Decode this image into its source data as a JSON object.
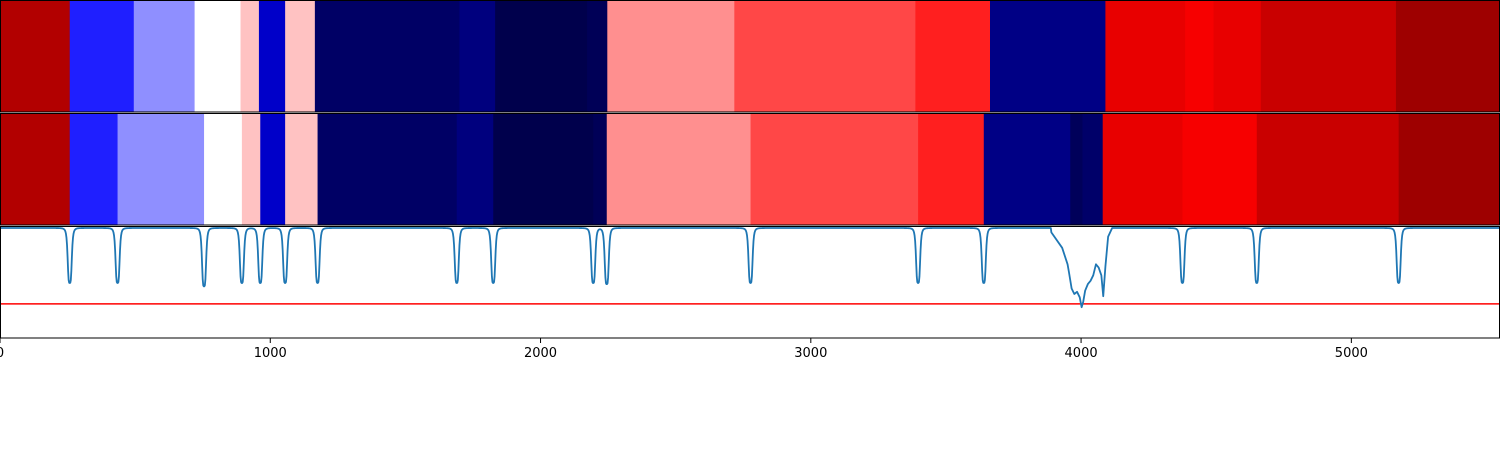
{
  "chart_data": {
    "type": "heatmap",
    "description_panels": [
      "segmentation-row-1",
      "segmentation-row-2",
      "boundary-signal"
    ],
    "xlim": [
      0,
      5550
    ],
    "x_ticks": [
      0,
      1000,
      2000,
      3000,
      4000,
      5000
    ],
    "x_tick_labels": [
      "0",
      "1000",
      "2000",
      "3000",
      "4000",
      "5000"
    ],
    "colormap": "seismic",
    "color_range": [
      -1,
      1
    ],
    "rows": [
      {
        "segments": [
          {
            "start": 0,
            "end": 258,
            "value": 0.8
          },
          {
            "start": 258,
            "end": 495,
            "value": -0.44
          },
          {
            "start": 495,
            "end": 720,
            "value": -0.22
          },
          {
            "start": 720,
            "end": 890,
            "value": 0.0
          },
          {
            "start": 890,
            "end": 958,
            "value": 0.12
          },
          {
            "start": 958,
            "end": 1055,
            "value": -0.65
          },
          {
            "start": 1055,
            "end": 1165,
            "value": 0.12
          },
          {
            "start": 1165,
            "end": 1700,
            "value": -0.93
          },
          {
            "start": 1700,
            "end": 1832,
            "value": -0.86
          },
          {
            "start": 1832,
            "end": 2172,
            "value": -1.0
          },
          {
            "start": 2172,
            "end": 2247,
            "value": -0.97
          },
          {
            "start": 2247,
            "end": 2717,
            "value": 0.22
          },
          {
            "start": 2717,
            "end": 3387,
            "value": 0.36
          },
          {
            "start": 3387,
            "end": 3663,
            "value": 0.44
          },
          {
            "start": 3663,
            "end": 4090,
            "value": -0.84
          },
          {
            "start": 4090,
            "end": 4385,
            "value": 0.59
          },
          {
            "start": 4385,
            "end": 4490,
            "value": 0.53
          },
          {
            "start": 4490,
            "end": 4665,
            "value": 0.59
          },
          {
            "start": 4665,
            "end": 5165,
            "value": 0.71
          },
          {
            "start": 5165,
            "end": 5550,
            "value": 0.88
          }
        ]
      },
      {
        "segments": [
          {
            "start": 0,
            "end": 258,
            "value": 0.8
          },
          {
            "start": 258,
            "end": 435,
            "value": -0.44
          },
          {
            "start": 435,
            "end": 755,
            "value": -0.22
          },
          {
            "start": 755,
            "end": 895,
            "value": 0.0
          },
          {
            "start": 895,
            "end": 963,
            "value": 0.12
          },
          {
            "start": 963,
            "end": 1055,
            "value": -0.65
          },
          {
            "start": 1055,
            "end": 1175,
            "value": 0.12
          },
          {
            "start": 1175,
            "end": 1690,
            "value": -0.93
          },
          {
            "start": 1690,
            "end": 1825,
            "value": -0.86
          },
          {
            "start": 1825,
            "end": 2195,
            "value": -1.0
          },
          {
            "start": 2195,
            "end": 2245,
            "value": -0.97
          },
          {
            "start": 2245,
            "end": 2777,
            "value": 0.22
          },
          {
            "start": 2777,
            "end": 3397,
            "value": 0.36
          },
          {
            "start": 3397,
            "end": 3640,
            "value": 0.44
          },
          {
            "start": 3640,
            "end": 3960,
            "value": -0.84
          },
          {
            "start": 3960,
            "end": 4005,
            "value": -0.96
          },
          {
            "start": 4005,
            "end": 4080,
            "value": -0.92
          },
          {
            "start": 4080,
            "end": 4375,
            "value": 0.59
          },
          {
            "start": 4375,
            "end": 4650,
            "value": 0.53
          },
          {
            "start": 4650,
            "end": 5175,
            "value": 0.71
          },
          {
            "start": 5175,
            "end": 5550,
            "value": 0.88
          }
        ]
      }
    ],
    "signal": {
      "color": "#1f77b4",
      "baseline": 0.0,
      "ylim": [
        -1.0,
        0.0
      ],
      "dip_width": 8,
      "dips": [
        {
          "x": 258,
          "depth": 0.5
        },
        {
          "x": 435,
          "depth": 0.5
        },
        {
          "x": 755,
          "depth": 0.53
        },
        {
          "x": 895,
          "depth": 0.5
        },
        {
          "x": 963,
          "depth": 0.5
        },
        {
          "x": 1055,
          "depth": 0.5
        },
        {
          "x": 1175,
          "depth": 0.5
        },
        {
          "x": 1690,
          "depth": 0.5
        },
        {
          "x": 1825,
          "depth": 0.5
        },
        {
          "x": 2195,
          "depth": 0.5
        },
        {
          "x": 2245,
          "depth": 0.51
        },
        {
          "x": 2777,
          "depth": 0.5
        },
        {
          "x": 3397,
          "depth": 0.5
        },
        {
          "x": 3640,
          "depth": 0.5
        },
        {
          "x": 4375,
          "depth": 0.5
        },
        {
          "x": 4650,
          "depth": 0.5
        },
        {
          "x": 5175,
          "depth": 0.5
        }
      ],
      "complex_segment": [
        [
          3890,
          -0.04
        ],
        [
          3930,
          -0.18
        ],
        [
          3950,
          -0.33
        ],
        [
          3955,
          -0.4
        ],
        [
          3965,
          -0.55
        ],
        [
          3975,
          -0.6
        ],
        [
          3985,
          -0.58
        ],
        [
          3995,
          -0.63
        ],
        [
          4002,
          -0.72
        ],
        [
          4008,
          -0.67
        ],
        [
          4015,
          -0.57
        ],
        [
          4025,
          -0.51
        ],
        [
          4035,
          -0.48
        ],
        [
          4045,
          -0.43
        ],
        [
          4055,
          -0.33
        ],
        [
          4065,
          -0.36
        ],
        [
          4075,
          -0.43
        ],
        [
          4082,
          -0.62
        ],
        [
          4090,
          -0.35
        ],
        [
          4100,
          -0.08
        ],
        [
          4115,
          0.0
        ]
      ],
      "threshold": {
        "value": -0.69,
        "color": "#ff0000"
      }
    }
  }
}
